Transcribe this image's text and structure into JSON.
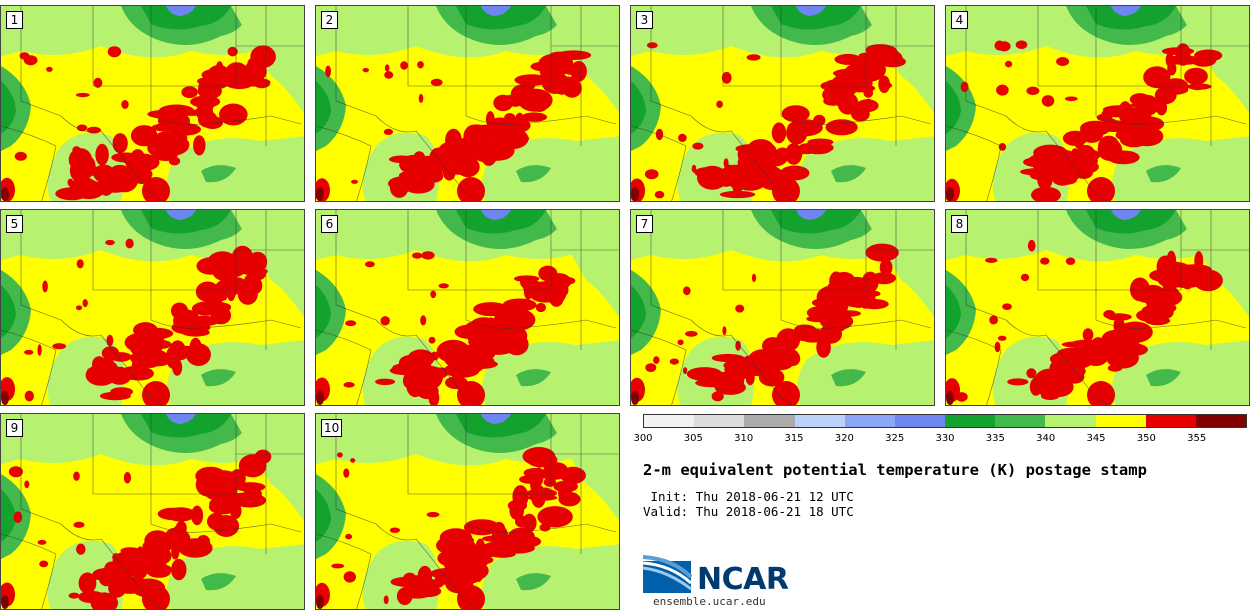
{
  "panels": [
    {
      "member": "1"
    },
    {
      "member": "2"
    },
    {
      "member": "3"
    },
    {
      "member": "4"
    },
    {
      "member": "5"
    },
    {
      "member": "6"
    },
    {
      "member": "7"
    },
    {
      "member": "8"
    },
    {
      "member": "9"
    },
    {
      "member": "10"
    }
  ],
  "colorbar": {
    "colors": [
      "#f2f2f2",
      "#dcdcdc",
      "#ababab",
      "#bcd2fa",
      "#8ba6f5",
      "#6e86f0",
      "#13a22e",
      "#43b84b",
      "#b6f26f",
      "#ffff00",
      "#e60000",
      "#820000"
    ],
    "ticks": [
      "300",
      "305",
      "310",
      "315",
      "320",
      "325",
      "330",
      "335",
      "340",
      "345",
      "350",
      "355"
    ]
  },
  "title": "2-m equivalent potential temperature (K) postage stamp",
  "init_line": " Init: Thu 2018-06-21 12 UTC",
  "valid_line": "Valid: Thu 2018-06-21 18 UTC",
  "logo": {
    "text": "NCAR",
    "site": "ensemble.ucar.edu"
  }
}
